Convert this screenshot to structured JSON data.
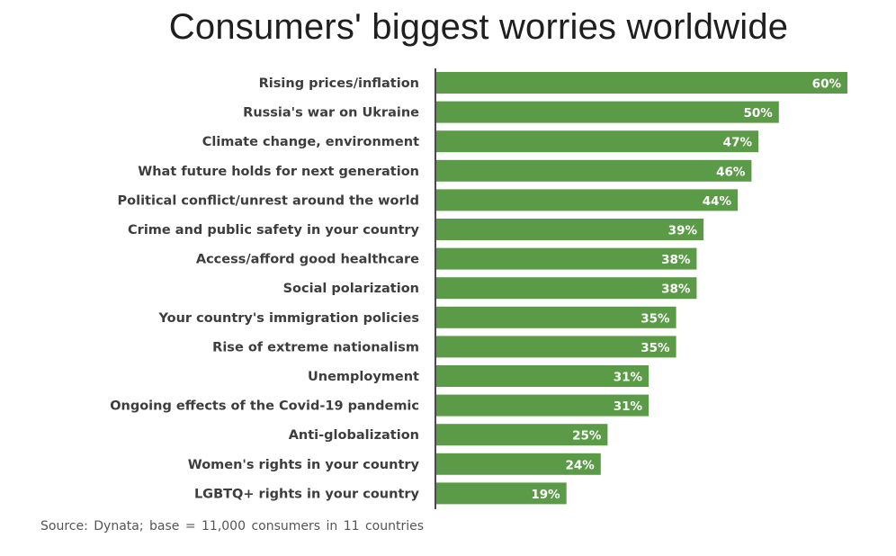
{
  "chart_data": {
    "type": "bar",
    "orientation": "horizontal",
    "title": "Consumers' biggest worries worldwide",
    "categories": [
      "Rising prices/inflation",
      "Russia's war on Ukraine",
      "Climate change, environment",
      "What future holds for next generation",
      "Political conflict/unrest around the world",
      "Crime and public safety in your country",
      "Access/afford good healthcare",
      "Social polarization",
      "Your country's immigration policies",
      "Rise of extreme nationalism",
      "Unemployment",
      "Ongoing effects of the Covid-19 pandemic",
      "Anti-globalization",
      "Women's rights in your country",
      "LGBTQ+ rights in your country"
    ],
    "values": [
      60,
      50,
      47,
      46,
      44,
      39,
      38,
      38,
      35,
      35,
      31,
      31,
      25,
      24,
      19
    ],
    "value_labels": [
      "60%",
      "50%",
      "47%",
      "46%",
      "44%",
      "39%",
      "38%",
      "38%",
      "35%",
      "35%",
      "31%",
      "31%",
      "25%",
      "24%",
      "19%"
    ],
    "unit": "%",
    "xlim": [
      0,
      60
    ],
    "xlabel": "",
    "ylabel": "",
    "grid": false,
    "legend": "none",
    "bar_color": "#5b9b47",
    "axis_color": "#4a4a4a"
  },
  "source": "Source: Dynata; base = 11,000 consumers in 11 countries"
}
